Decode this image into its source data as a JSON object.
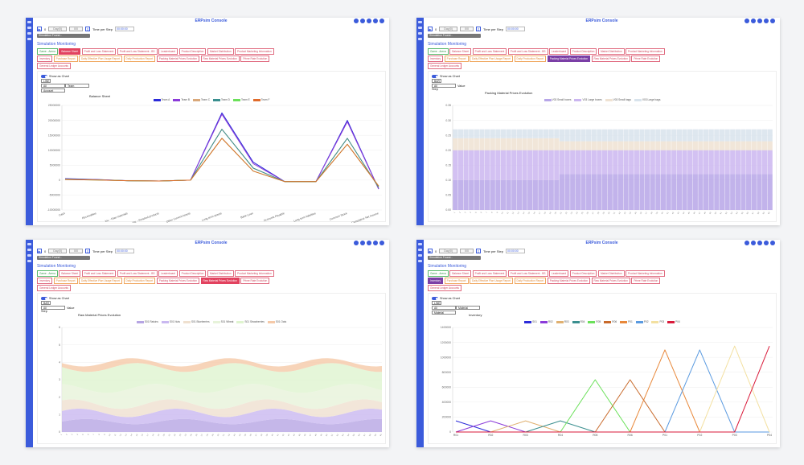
{
  "app": {
    "title": "ERPsim Console",
    "controls": {
      "play_label": "▶",
      "step_label": "0",
      "day_box_label": "Day(0)",
      "third_box_label": "0/0",
      "tps_label": "Time per Step",
      "tps_value": "00:00:00",
      "sim_found": "Simulation Found..."
    },
    "section_title": "Simulation Monitoring",
    "tabs": [
      {
        "label": "Game - Arena",
        "style": "green"
      },
      {
        "label": "Balance Sheet",
        "style": "red"
      },
      {
        "label": "Profit and Loss Statement",
        "style": "red"
      },
      {
        "label": "Profit and Loss Statement - BS",
        "style": "red"
      },
      {
        "label": "Leaderboard",
        "style": "red"
      },
      {
        "label": "Product Description",
        "style": "red"
      },
      {
        "label": "Market Distribution",
        "style": "red"
      },
      {
        "label": "Product Marketing Information",
        "style": "red"
      },
      {
        "label": "Inventory",
        "style": "red"
      },
      {
        "label": "Purchase Report",
        "style": "orange"
      },
      {
        "label": "Daily Effective Plan Usage Report",
        "style": "orange"
      },
      {
        "label": "Daily Production Report",
        "style": "orange"
      },
      {
        "label": "Packing Material Prices Evolution",
        "style": "red"
      },
      {
        "label": "Raw Material Prices Evolution",
        "style": "red"
      },
      {
        "label": "Prime Rate Evolution",
        "style": "red"
      },
      {
        "label": "General Ledger Accounts",
        "style": "red"
      }
    ],
    "show_as_chart": "Show as Chart"
  },
  "panels": [
    {
      "active_tab": 1,
      "active_style": "red",
      "chart_type_select": "LINE",
      "select_a": "All",
      "select_b": "Team",
      "select_c": "Account",
      "chart_title": "Balance Sheet",
      "chart_data": {
        "type": "line",
        "title": "Balance Sheet",
        "categories": [
          "Cash",
          "Receivables",
          "Inv. - Raw materials",
          "Inv. - Finished products",
          "Other Current Assets",
          "Long term assets",
          "Bank Loan",
          "Accounts Payable",
          "Long term liabilities",
          "Common Stock",
          "Cumulative Net Income"
        ],
        "ylim": [
          -10000000,
          25000000
        ],
        "y_ticks": [
          "25000000",
          "20000000",
          "15000000",
          "10000000",
          "5000000",
          "0",
          "-5000000",
          "-10000000"
        ],
        "series": [
          {
            "name": "Team A",
            "color": "#2b2bd9",
            "values": [
              500000,
              200000,
              -200000,
              -300000,
              0,
              22500000,
              6000000,
              -500000,
              -500000,
              20000000,
              -3000000
            ]
          },
          {
            "name": "Team B",
            "color": "#8b3bd9",
            "values": [
              400000,
              150000,
              -200000,
              -300000,
              0,
              22000000,
              5500000,
              -500000,
              -500000,
              19500000,
              -3000000
            ]
          },
          {
            "name": "Team C",
            "color": "#d9a87a",
            "values": [
              300000,
              100000,
              -200000,
              -300000,
              0,
              17000000,
              4000000,
              -500000,
              -500000,
              14000000,
              -2500000
            ]
          },
          {
            "name": "Team D",
            "color": "#3a8f8f",
            "values": [
              300000,
              100000,
              -200000,
              -300000,
              0,
              17000000,
              4000000,
              -500000,
              -500000,
              14000000,
              -2500000
            ]
          },
          {
            "name": "Team E",
            "color": "#6be05a",
            "values": [
              200000,
              50000,
              -200000,
              -300000,
              0,
              14000000,
              3000000,
              -500000,
              -500000,
              12000000,
              -2000000
            ]
          },
          {
            "name": "Team F",
            "color": "#e06b2b",
            "values": [
              200000,
              50000,
              -200000,
              -300000,
              0,
              14000000,
              3000000,
              -500000,
              -500000,
              12000000,
              -2000000
            ]
          }
        ]
      }
    },
    {
      "active_tab": 12,
      "active_style": "purple",
      "chart_type_select": "BAR",
      "select_a": "All",
      "select_b": "Value",
      "step_label": "Step",
      "chart_title": "Packing Material Prices Evolution",
      "chart_data": {
        "type": "bar",
        "title": "Packing Material Prices Evolution",
        "xlabel": "Step",
        "ylim": [
          0,
          0.35
        ],
        "y_ticks": [
          "0.35",
          "0.30",
          "0.25",
          "0.20",
          "0.15",
          "0.10",
          "0.05",
          "0.00"
        ],
        "bar_count": 60,
        "change_at": 20,
        "series": [
          {
            "name": "V03 Small boxes",
            "color": "#b7a6e8",
            "values_before": 0.1,
            "values_after": 0.12
          },
          {
            "name": "V03 Large boxes",
            "color": "#cbb6f0",
            "values_before": 0.1,
            "values_after": 0.08
          },
          {
            "name": "V03 Small bags",
            "color": "#efe2d2",
            "values_before": 0.04,
            "values_after": 0.03
          },
          {
            "name": "V03 Large bags",
            "color": "#d8e3ec",
            "values_before": 0.03,
            "values_after": 0.04
          }
        ]
      }
    },
    {
      "active_tab": 13,
      "active_style": "red",
      "chart_type_select": "BAR",
      "select_a": "All",
      "select_b": "Value",
      "step_label": "Step",
      "chart_title": "Raw Material Prices Evolution",
      "chart_data": {
        "type": "area",
        "title": "Raw Material Prices Evolution",
        "xlabel": "Step",
        "ylim": [
          0,
          6
        ],
        "y_ticks": [
          "6",
          "5",
          "4",
          "3",
          "2",
          "1",
          "0"
        ],
        "series": [
          {
            "name": "S01 Raisins",
            "color": "#b6a5e3"
          },
          {
            "name": "S01 Nuts",
            "color": "#c9b8f0"
          },
          {
            "name": "S01 Blueberries",
            "color": "#efe0cf"
          },
          {
            "name": "S01 Wheat",
            "color": "#e7f3da"
          },
          {
            "name": "S01 Strawberries",
            "color": "#dff4cf"
          },
          {
            "name": "S01 Oats",
            "color": "#f5c9a8"
          }
        ]
      }
    },
    {
      "active_tab": 8,
      "active_style": "purple",
      "chart_type_select": "LINE",
      "select_a": "All",
      "select_b": "Material",
      "select_c": "Material",
      "chart_title": "Inventory",
      "chart_data": {
        "type": "line",
        "title": "Inventory",
        "categories": [
          "R01",
          "R02",
          "R03",
          "R04",
          "R05",
          "R06",
          "P01",
          "P02",
          "P03",
          "P04"
        ],
        "ylim": [
          0,
          1400000
        ],
        "y_ticks": [
          "1400000",
          "1200000",
          "1000000",
          "800000",
          "600000",
          "400000",
          "200000",
          "0"
        ],
        "series": [
          {
            "name": "S01",
            "color": "#2b2bd9",
            "values": [
              150000,
              0,
              0,
              0,
              0,
              0,
              0,
              0,
              0,
              0
            ]
          },
          {
            "name": "R02",
            "color": "#8b3bd9",
            "values": [
              0,
              150000,
              0,
              0,
              0,
              0,
              0,
              0,
              0,
              0
            ]
          },
          {
            "name": "R03",
            "color": "#e0b070",
            "values": [
              0,
              0,
              150000,
              0,
              0,
              0,
              0,
              0,
              0,
              0
            ]
          },
          {
            "name": "R04",
            "color": "#3a8f8f",
            "values": [
              0,
              0,
              0,
              150000,
              0,
              0,
              0,
              0,
              0,
              0
            ]
          },
          {
            "name": "R05",
            "color": "#6be05a",
            "values": [
              0,
              0,
              0,
              0,
              700000,
              0,
              0,
              0,
              0,
              0
            ]
          },
          {
            "name": "R06",
            "color": "#c86a2b",
            "values": [
              0,
              0,
              0,
              0,
              0,
              700000,
              0,
              0,
              0,
              0
            ]
          },
          {
            "name": "P01",
            "color": "#e8883a",
            "values": [
              0,
              0,
              0,
              0,
              0,
              0,
              1100000,
              0,
              0,
              0
            ]
          },
          {
            "name": "P02",
            "color": "#5a9ae0",
            "values": [
              0,
              0,
              0,
              0,
              0,
              0,
              0,
              1100000,
              0,
              0
            ]
          },
          {
            "name": "P03",
            "color": "#f3e0a0",
            "values": [
              0,
              0,
              0,
              0,
              0,
              0,
              0,
              0,
              1150000,
              0
            ]
          },
          {
            "name": "P04",
            "color": "#d91a3a",
            "values": [
              0,
              0,
              0,
              0,
              0,
              0,
              0,
              0,
              0,
              1150000
            ]
          }
        ]
      }
    }
  ]
}
